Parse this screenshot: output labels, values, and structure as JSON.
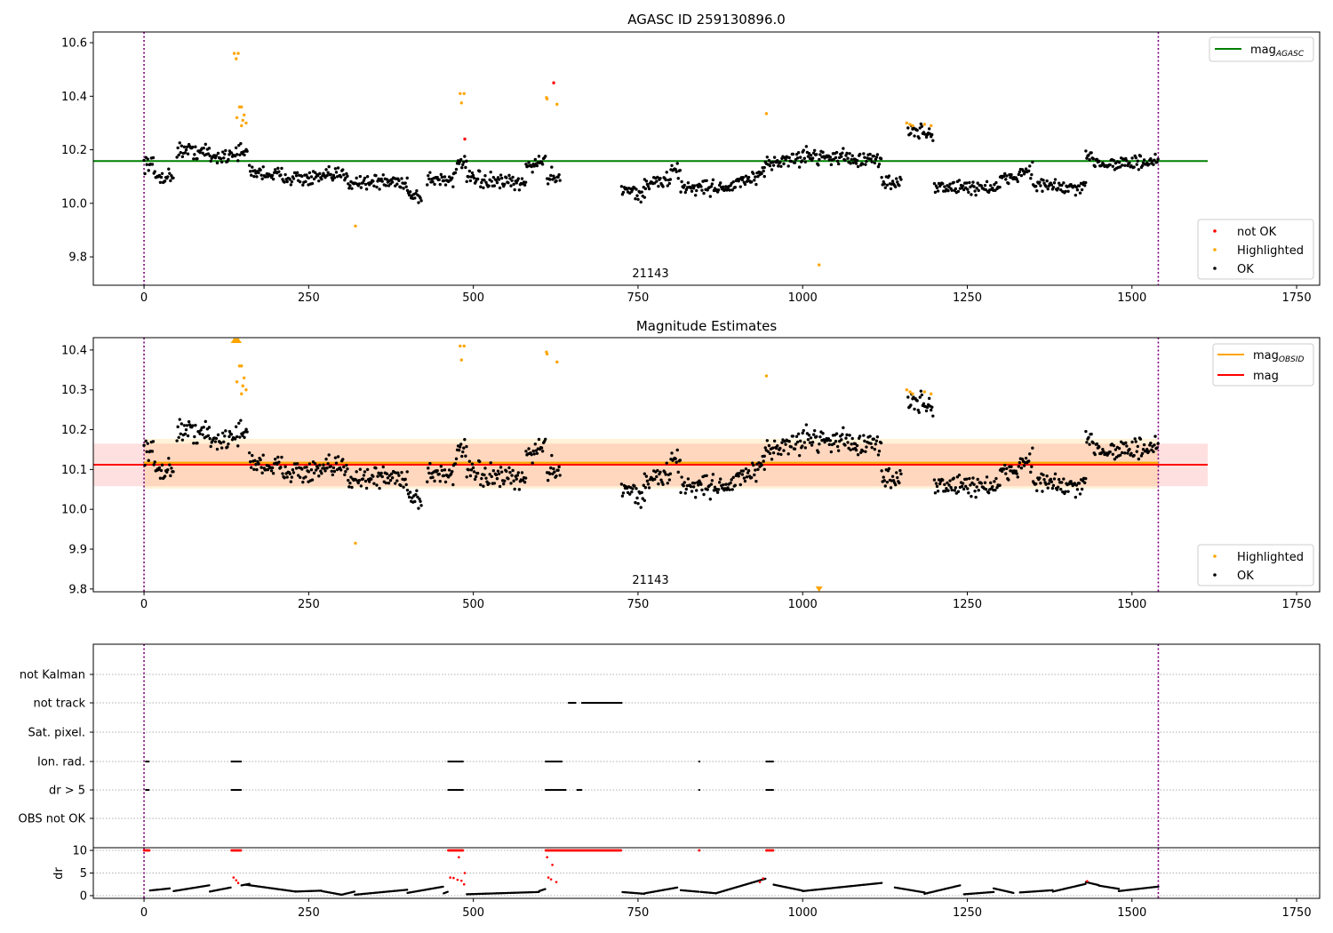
{
  "chart_data": [
    {
      "type": "scatter",
      "title": "AGASC ID 259130896.0",
      "xlim": [
        -77,
        1785
      ],
      "ylim": [
        9.694,
        10.64
      ],
      "xticks": [
        0,
        250,
        500,
        750,
        1000,
        1250,
        1500,
        1750
      ],
      "yticks": [
        "9.8",
        "10.0",
        "10.2",
        "10.4",
        "10.6"
      ],
      "yticks_values": [
        9.8,
        10.0,
        10.2,
        10.4,
        10.6
      ],
      "annotation": "21143",
      "obsid_bounds": [
        0,
        1540
      ],
      "mag_agasc": 10.158,
      "mag_agasc_xrange": [
        -77,
        1615
      ],
      "legend_top": {
        "label": "mag",
        "sub": "AGASC",
        "color": "#008000"
      },
      "legend_bottom": [
        {
          "label": "not OK",
          "color": "#ff0000"
        },
        {
          "label": "Highlighted",
          "color": "#ffa500"
        },
        {
          "label": "OK",
          "color": "#000000"
        }
      ]
    },
    {
      "type": "scatter",
      "title": "Magnitude Estimates",
      "xlim": [
        -77,
        1785
      ],
      "ylim": [
        9.793,
        10.431
      ],
      "xticks": [
        0,
        250,
        500,
        750,
        1000,
        1250,
        1500,
        1750
      ],
      "yticks": [
        "9.8",
        "9.9",
        "10.0",
        "10.1",
        "10.2",
        "10.3",
        "10.4"
      ],
      "yticks_values": [
        9.8,
        9.9,
        10.0,
        10.1,
        10.2,
        10.3,
        10.4
      ],
      "annotation": "21143",
      "mag_obsid": 10.117,
      "mag_obsid_band": [
        10.052,
        10.177
      ],
      "mag_obsid_xrange": [
        0,
        1540
      ],
      "mag": 10.112,
      "mag_band": [
        10.058,
        10.165
      ],
      "mag_xrange": [
        -77,
        1615
      ],
      "legend_top": [
        {
          "label": "mag",
          "sub": "OBSID",
          "color": "#ffa500"
        },
        {
          "label": "mag",
          "sub": "",
          "color": "#ff0000"
        }
      ],
      "legend_bottom": [
        {
          "label": "Highlighted",
          "color": "#ffa500"
        },
        {
          "label": "OK",
          "color": "#000000"
        }
      ]
    },
    {
      "type": "scatter",
      "flag_rows": [
        "not Kalman",
        "not track",
        "Sat. pixel.",
        "Ion. rad.",
        "dr > 5",
        "OBS not OK"
      ],
      "flag_ranges": {
        "not Kalman": [],
        "not track": [
          [
            645,
            655
          ],
          [
            665,
            725
          ]
        ],
        "Sat. pixel.": [],
        "Ion. rad.": [
          [
            3,
            7
          ],
          [
            133,
            147
          ],
          [
            462,
            485
          ],
          [
            610,
            635
          ],
          [
            843,
            844
          ],
          [
            945,
            955
          ]
        ],
        "dr > 5": [
          [
            3,
            7
          ],
          [
            133,
            147
          ],
          [
            462,
            485
          ],
          [
            610,
            640
          ],
          [
            658,
            665
          ],
          [
            843,
            844
          ],
          [
            945,
            955
          ]
        ],
        "OBS not OK": []
      },
      "dr_ylabel": "dr",
      "dr_yticks": [
        "0",
        "5",
        "10"
      ],
      "dr_yticks_values": [
        0,
        5,
        10
      ],
      "dr_ylim": [
        -0.6,
        10.6
      ],
      "dr_clipped_ranges": [
        [
          0,
          8
        ],
        [
          133,
          147
        ],
        [
          462,
          485
        ],
        [
          610,
          725
        ],
        [
          843,
          844
        ],
        [
          945,
          955
        ]
      ],
      "dr_segments": [
        [
          0,
          40,
          1.0,
          1.6
        ],
        [
          45,
          100,
          1.0,
          2.3
        ],
        [
          100,
          160,
          0.9,
          2.6
        ],
        [
          155,
          230,
          2.4,
          0.9
        ],
        [
          230,
          270,
          0.9,
          1.1
        ],
        [
          270,
          300,
          1.0,
          0.2
        ],
        [
          300,
          320,
          0.2,
          0.9
        ],
        [
          320,
          400,
          0.2,
          1.3
        ],
        [
          400,
          455,
          0.6,
          2.0
        ],
        [
          455,
          485,
          0.5,
          2.2
        ],
        [
          490,
          600,
          0.3,
          0.8
        ],
        [
          600,
          630,
          1.0,
          2.5
        ],
        [
          725,
          760,
          0.8,
          0.4
        ],
        [
          760,
          810,
          0.5,
          1.8
        ],
        [
          815,
          870,
          1.2,
          0.5
        ],
        [
          870,
          945,
          0.6,
          3.8
        ],
        [
          950,
          1000,
          2.6,
          1.1
        ],
        [
          1000,
          1120,
          1.0,
          2.8
        ],
        [
          1140,
          1185,
          1.8,
          0.7
        ],
        [
          1185,
          1240,
          0.4,
          2.3
        ],
        [
          1245,
          1290,
          0.3,
          0.8
        ],
        [
          1290,
          1320,
          1.6,
          0.6
        ],
        [
          1330,
          1380,
          0.7,
          1.2
        ],
        [
          1380,
          1430,
          0.9,
          2.6
        ],
        [
          1430,
          1450,
          3.0,
          2.3
        ],
        [
          1450,
          1480,
          2.2,
          1.5
        ],
        [
          1480,
          1540,
          1.0,
          2.0
        ]
      ],
      "dr_red_points": [
        [
          136,
          4.0
        ],
        [
          140,
          3.4
        ],
        [
          143,
          2.8
        ],
        [
          465,
          4.0
        ],
        [
          470,
          3.9
        ],
        [
          476,
          3.5
        ],
        [
          478,
          8.5
        ],
        [
          482,
          3.3
        ],
        [
          486,
          2.5
        ],
        [
          487,
          5.0
        ],
        [
          612,
          8.5
        ],
        [
          614,
          4.0
        ],
        [
          618,
          3.6
        ],
        [
          620,
          6.8
        ],
        [
          626,
          3.0
        ],
        [
          935,
          3.0
        ],
        [
          940,
          3.8
        ],
        [
          1432,
          3.2
        ]
      ]
    }
  ],
  "mag_segments": [
    [
      0,
      15,
      10.15,
      10.15
    ],
    [
      15,
      45,
      10.1,
      10.1
    ],
    [
      50,
      100,
      10.2,
      10.19
    ],
    [
      100,
      130,
      10.17,
      10.18
    ],
    [
      130,
      158,
      10.19,
      10.19
    ],
    [
      160,
      250,
      10.12,
      10.09
    ],
    [
      250,
      310,
      10.09,
      10.11
    ],
    [
      310,
      400,
      10.08,
      10.08
    ],
    [
      400,
      422,
      10.04,
      10.02
    ],
    [
      430,
      470,
      10.09,
      10.09
    ],
    [
      470,
      490,
      10.12,
      10.16
    ],
    [
      490,
      580,
      10.09,
      10.07
    ],
    [
      580,
      610,
      10.14,
      10.16
    ],
    [
      612,
      632,
      10.1,
      10.1
    ],
    [
      725,
      760,
      10.06,
      10.03
    ],
    [
      760,
      800,
      10.07,
      10.09
    ],
    [
      800,
      815,
      10.12,
      10.12
    ],
    [
      815,
      900,
      10.06,
      10.06
    ],
    [
      900,
      942,
      10.08,
      10.1
    ],
    [
      942,
      1000,
      10.15,
      10.17
    ],
    [
      1000,
      1080,
      10.18,
      10.17
    ],
    [
      1080,
      1120,
      10.16,
      10.16
    ],
    [
      1120,
      1150,
      10.08,
      10.08
    ],
    [
      1160,
      1198,
      10.27,
      10.26
    ],
    [
      1200,
      1300,
      10.06,
      10.06
    ],
    [
      1300,
      1350,
      10.08,
      10.13
    ],
    [
      1350,
      1430,
      10.07,
      10.05
    ],
    [
      1430,
      1450,
      10.18,
      10.16
    ],
    [
      1450,
      1540,
      10.15,
      10.15
    ]
  ],
  "highlighted_points": [
    [
      137,
      10.56
    ],
    [
      143,
      10.56
    ],
    [
      140,
      10.54
    ],
    [
      145,
      10.36
    ],
    [
      148,
      10.36
    ],
    [
      141,
      10.32
    ],
    [
      150,
      10.31
    ],
    [
      152,
      10.33
    ],
    [
      148,
      10.29
    ],
    [
      155,
      10.3
    ],
    [
      321,
      9.915
    ],
    [
      480,
      10.41
    ],
    [
      486,
      10.41
    ],
    [
      482,
      10.375
    ],
    [
      611,
      10.395
    ],
    [
      612,
      10.39
    ],
    [
      627,
      10.37
    ],
    [
      945,
      10.335
    ],
    [
      1025,
      9.77
    ],
    [
      1158,
      10.3
    ],
    [
      1163,
      10.295
    ],
    [
      1167,
      10.29
    ],
    [
      1185,
      10.295
    ],
    [
      1195,
      10.29
    ]
  ],
  "not_ok_points": [
    [
      487,
      10.24
    ],
    [
      622,
      10.45
    ]
  ]
}
